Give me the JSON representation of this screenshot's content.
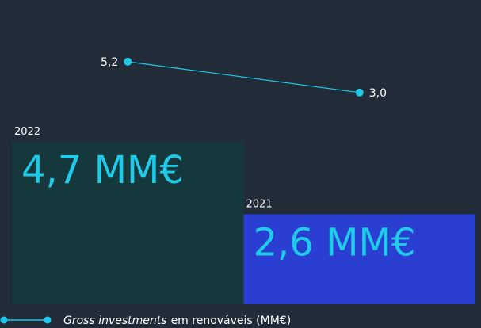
{
  "chart_data": {
    "type": "bar",
    "categories": [
      "2022",
      "2021"
    ],
    "values": [
      4.7,
      2.6
    ],
    "value_labels": [
      "4,7 MM€",
      "2,6 MM€"
    ],
    "colors": [
      "#15383c",
      "#2a3fd1"
    ],
    "ylim": [
      0,
      8.8
    ],
    "y2lim": [
      -12.1,
      9.6
    ],
    "series": [
      {
        "type": "line",
        "axis": "y2",
        "color": "#1ec8e8",
        "values": [
          5.2,
          3.0
        ],
        "value_labels": [
          "5,2",
          "3,0"
        ]
      }
    ],
    "legend_text": [
      "Gross investments",
      "em renováveis (MM€)"
    ]
  }
}
